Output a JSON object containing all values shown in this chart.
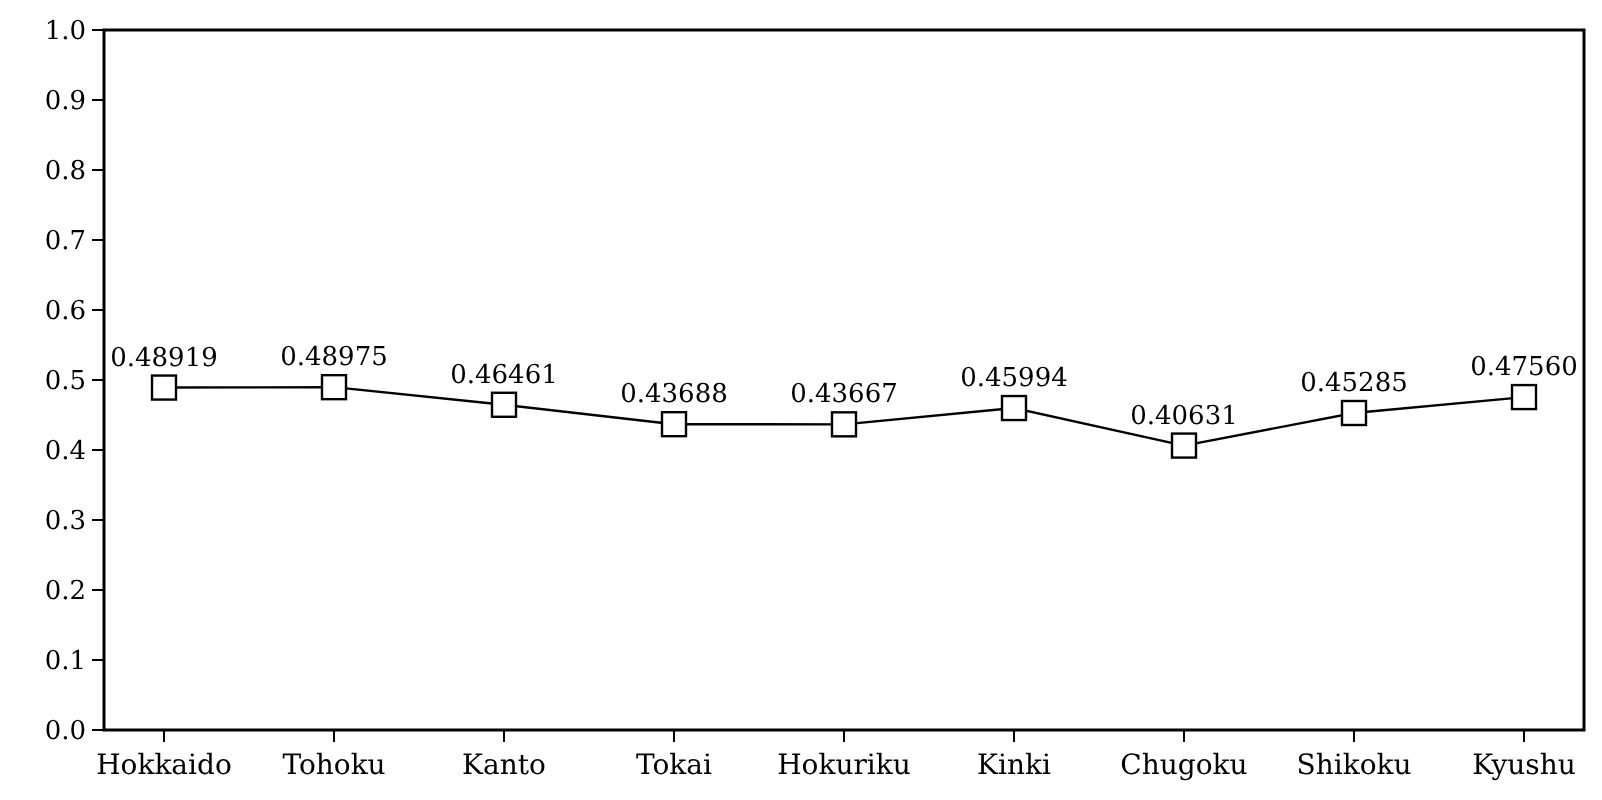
{
  "chart_data": {
    "type": "line",
    "categories": [
      "Hokkaido",
      "Tohoku",
      "Kanto",
      "Tokai",
      "Hokuriku",
      "Kinki",
      "Chugoku",
      "Shikoku",
      "Kyushu"
    ],
    "series": [
      {
        "color": "#000000",
        "values": [
          0.48919,
          0.48975,
          0.46461,
          0.43688,
          0.43667,
          0.45994,
          0.40631,
          0.45285,
          0.4756
        ],
        "value_labels": [
          "0.48919",
          "0.48975",
          "0.46461",
          "0.43688",
          "0.43667",
          "0.45994",
          "0.40631",
          "0.45285",
          "0.47560"
        ]
      }
    ],
    "ylim": [
      0,
      1
    ],
    "yticks": [
      {
        "value": 0,
        "label": "0.0"
      },
      0.1,
      0.2,
      0.3,
      0.4,
      0.5,
      0.6,
      0.7,
      0.8,
      0.9,
      {
        "value": 1,
        "label": "1.0"
      }
    ],
    "grid": false,
    "marker": "square",
    "line_style": "solid"
  }
}
